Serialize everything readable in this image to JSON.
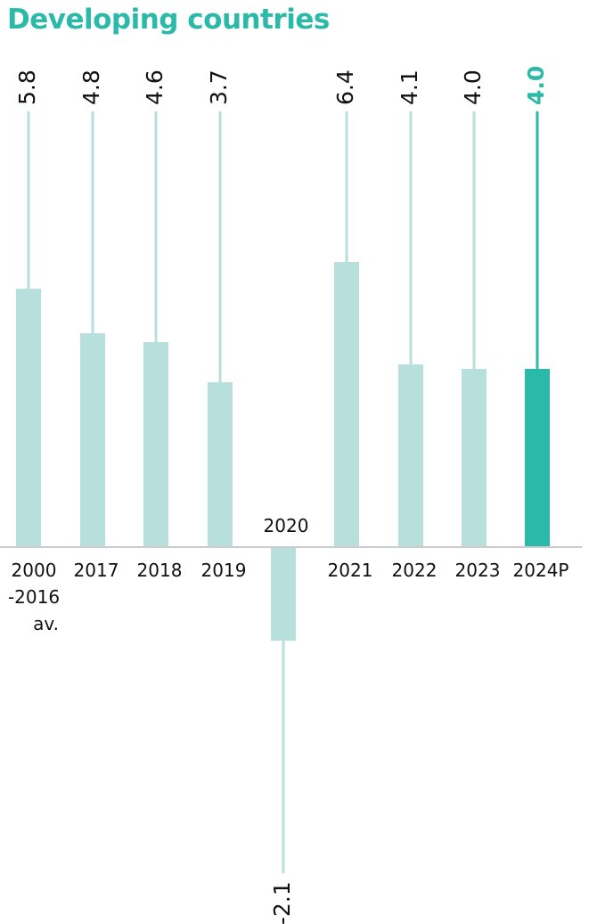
{
  "chart_data": {
    "type": "bar",
    "title": "Developing countries",
    "categories": [
      [
        "2000",
        "-2016",
        "av."
      ],
      [
        "2017"
      ],
      [
        "2018"
      ],
      [
        "2019"
      ],
      [
        "2020"
      ],
      [
        "2021"
      ],
      [
        "2022"
      ],
      [
        "2023"
      ],
      [
        "2024P"
      ]
    ],
    "values": [
      5.8,
      4.8,
      4.6,
      3.7,
      -2.1,
      6.4,
      4.1,
      4.0,
      4.0
    ],
    "value_labels": [
      "5.8",
      "4.8",
      "4.6",
      "3.7",
      "-2.1",
      "6.4",
      "4.1",
      "4.0",
      "4.0"
    ],
    "highlight_index": 8,
    "colors": {
      "bar": "#b7e0dc",
      "highlight": "#2bbaa9",
      "axis": "#cccccc",
      "title": "#2bbaa9",
      "label": "#111111"
    }
  }
}
